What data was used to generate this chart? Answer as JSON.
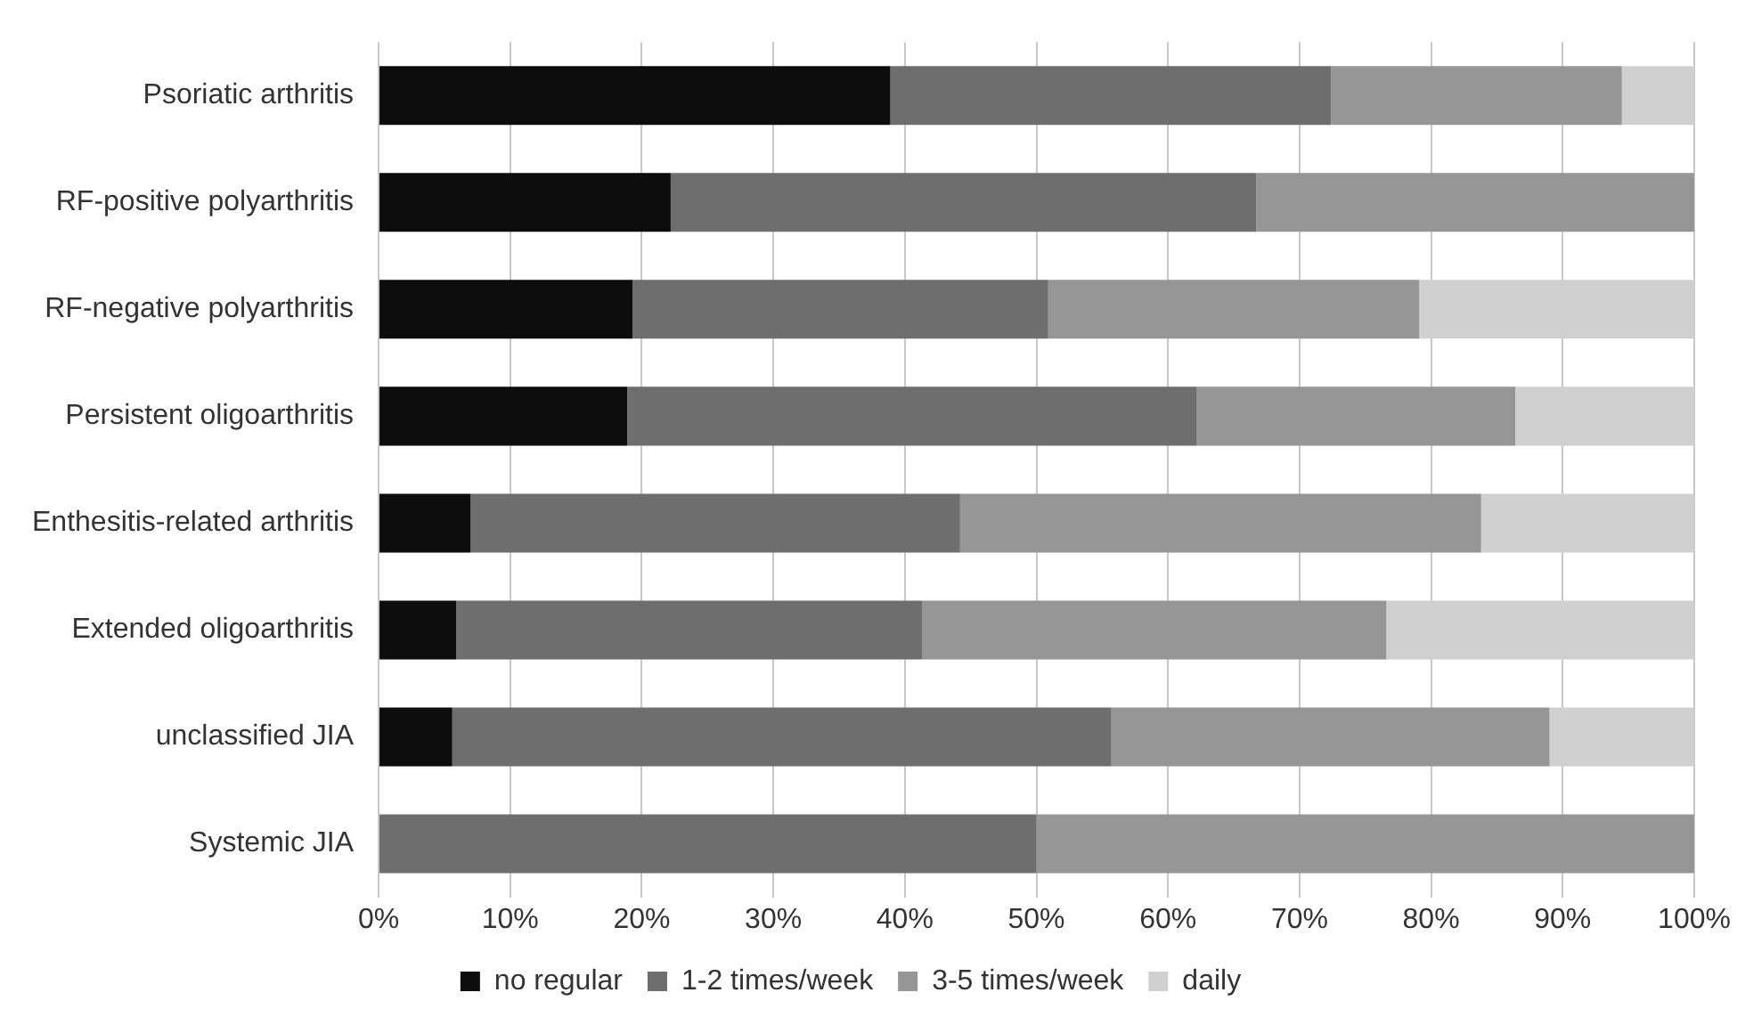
{
  "chart_data": {
    "type": "bar",
    "orientation": "horizontal",
    "stacked": true,
    "categories": [
      "Psoriatic arthritis",
      "RF-positive polyarthritis",
      "RF-negative polyarthritis",
      "Persistent oligoarthritis",
      "Enthesitis-related arthritis",
      "Extended oligoarthritis",
      "unclassified JIA",
      "Systemic JIA"
    ],
    "series": [
      {
        "name": "no regular",
        "color": "#0d0d0d",
        "values": [
          38.9,
          22.2,
          19.3,
          18.9,
          7.0,
          5.9,
          5.6,
          0
        ]
      },
      {
        "name": "1-2 times/week",
        "color": "#6e6e6e",
        "values": [
          33.5,
          44.5,
          31.6,
          43.3,
          37.2,
          35.4,
          50.1,
          50
        ]
      },
      {
        "name": "3-5 times/week",
        "color": "#969696",
        "values": [
          22.1,
          33.3,
          28.2,
          24.2,
          39.6,
          35.3,
          33.3,
          50
        ]
      },
      {
        "name": "daily",
        "color": "#d0d0d0",
        "values": [
          5.5,
          0,
          20.9,
          13.6,
          16.2,
          23.4,
          11.0,
          0
        ]
      }
    ],
    "xlim": [
      0,
      100
    ],
    "xticks": [
      {
        "value": 0,
        "label": "0%"
      },
      {
        "value": 10,
        "label": "10%"
      },
      {
        "value": 20,
        "label": "20%"
      },
      {
        "value": 30,
        "label": "30%"
      },
      {
        "value": 40,
        "label": "40%"
      },
      {
        "value": 50,
        "label": "50%"
      },
      {
        "value": 60,
        "label": "60%"
      },
      {
        "value": 70,
        "label": "70%"
      },
      {
        "value": 80,
        "label": "80%"
      },
      {
        "value": 90,
        "label": "90%"
      },
      {
        "value": 100,
        "label": "100%"
      }
    ],
    "grid": "x",
    "legend": "bottom"
  }
}
